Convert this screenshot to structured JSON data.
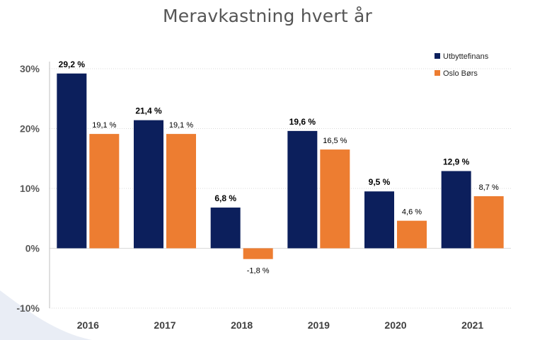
{
  "colors": {
    "utbyttefinans": "#0c1f5c",
    "oslo_bors": "#ed7d31",
    "grid": "#d9d9d9",
    "axis": "#bfbfbf",
    "label": "#595959",
    "tick": "#404040",
    "background_shape": "#e4e8f3"
  },
  "chart_data": {
    "type": "bar",
    "title": "Meravkastning hvert år",
    "categories": [
      "2016",
      "2017",
      "2018",
      "2019",
      "2020",
      "2021"
    ],
    "series": [
      {
        "name": "Utbyttefinans",
        "values": [
          29.2,
          21.4,
          6.8,
          19.6,
          9.5,
          12.9
        ],
        "labels": [
          "29,2 %",
          "21,4 %",
          "6,8 %",
          "19,6 %",
          "9,5 %",
          "12,9 %"
        ]
      },
      {
        "name": "Oslo Børs",
        "values": [
          19.1,
          19.1,
          -1.8,
          16.5,
          4.6,
          8.7
        ],
        "labels": [
          "19,1 %",
          "19,1 %",
          "-1,8 %",
          "16,5 %",
          "4,6 %",
          "8,7 %"
        ]
      }
    ],
    "ylim": [
      -10,
      30
    ],
    "yticks": [
      30,
      20,
      10,
      0,
      -10
    ],
    "ytick_labels": [
      "30%",
      "20%",
      "10%",
      "0%",
      "-10%"
    ],
    "grid": true,
    "legend_position": "top-right"
  }
}
